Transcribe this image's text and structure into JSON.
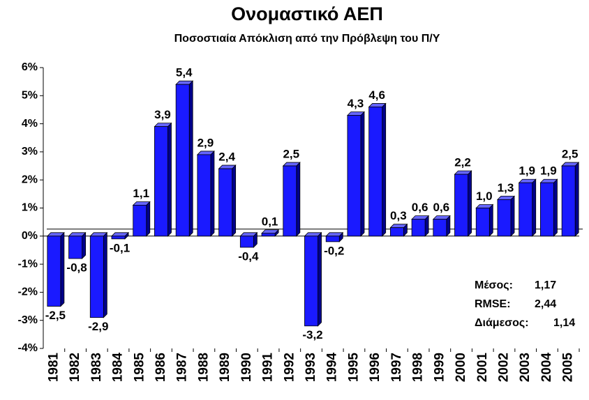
{
  "chart_data": {
    "type": "bar",
    "title": "Ονομαστικό ΑΕΠ",
    "subtitle": "Ποσοστιαία Απόκλιση από την Πρόβλεψη του Π/Υ",
    "categories": [
      "1981",
      "1982",
      "1983",
      "1984",
      "1985",
      "1986",
      "1987",
      "1988",
      "1989",
      "1990",
      "1991",
      "1992",
      "1993",
      "1994",
      "1995",
      "1996",
      "1997",
      "1998",
      "1999",
      "2000",
      "2001",
      "2002",
      "2003",
      "2004",
      "2005"
    ],
    "values": [
      -2.5,
      -0.8,
      -2.9,
      -0.1,
      1.1,
      3.9,
      5.4,
      2.9,
      2.4,
      -0.4,
      0.1,
      2.5,
      -3.2,
      -0.2,
      4.3,
      4.6,
      0.3,
      0.6,
      0.6,
      2.2,
      1.0,
      1.3,
      1.9,
      1.9,
      2.5
    ],
    "value_labels": [
      "-2,5",
      "-0,8",
      "-2,9",
      "-0,1",
      "1,1",
      "3,9",
      "5,4",
      "2,9",
      "2,4",
      "-0,4",
      "0,1",
      "2,5",
      "-3,2",
      "-0,2",
      "4,3",
      "4,6",
      "0,3",
      "0,6",
      "0,6",
      "2,2",
      "1,0",
      "1,3",
      "1,9",
      "1,9",
      "2,5"
    ],
    "color": "#1a1aff",
    "ylim": [
      -4,
      6
    ],
    "yticks": [
      {
        "value": -4,
        "label": "-4%"
      },
      {
        "value": -3,
        "label": "-3%"
      },
      {
        "value": -2,
        "label": "-2%"
      },
      {
        "value": -1,
        "label": "-1%"
      },
      {
        "value": 0,
        "label": "0%"
      },
      {
        "value": 1,
        "label": "1%"
      },
      {
        "value": 2,
        "label": "2%"
      },
      {
        "value": 3,
        "label": "3%"
      },
      {
        "value": 4,
        "label": "4%"
      },
      {
        "value": 5,
        "label": "5%"
      },
      {
        "value": 6,
        "label": "6%"
      }
    ],
    "grid": false,
    "stats": [
      {
        "label": "Μέσος:",
        "value": "1,17"
      },
      {
        "label": "RMSE:",
        "value": "2,44"
      },
      {
        "label": "Διάμεσος:",
        "value": "1,14"
      }
    ]
  }
}
